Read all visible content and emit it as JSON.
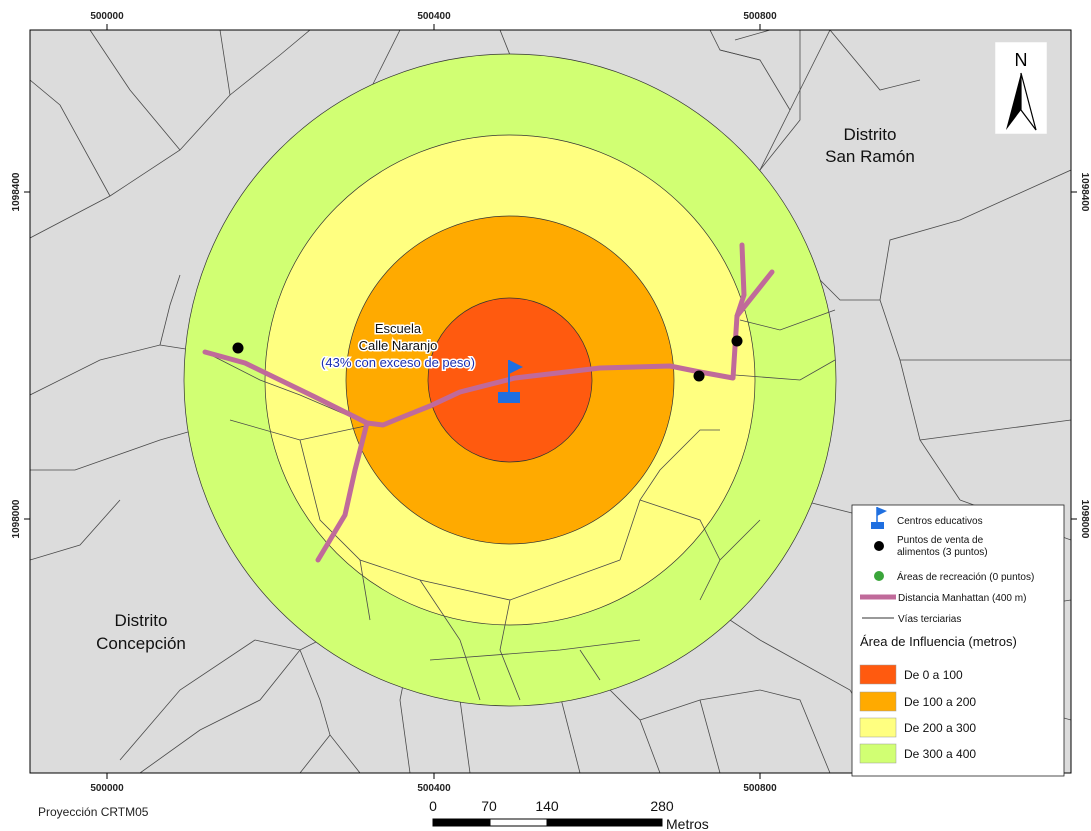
{
  "map": {
    "colors": {
      "background": "#dcdcdc",
      "road": "#4a4a4a",
      "ring_0_100": "#ff5a0f",
      "ring_100_200": "#ffaa00",
      "ring_200_300": "#ffff80",
      "ring_300_400": "#d1ff73",
      "manhattan": "#c06a9a",
      "school": "#1f6fe0",
      "food_point": "#000000",
      "recreation": "#3aa53a"
    },
    "top_ticks": [
      "500000",
      "500400",
      "500800"
    ],
    "bottom_ticks": [
      "500000",
      "500400",
      "500800"
    ],
    "left_ticks": [
      "1098400",
      "1098000"
    ],
    "right_ticks": [
      "1098400",
      "1098000"
    ],
    "labels": {
      "distrito_san_ramon": [
        "Distrito",
        "San Ramón"
      ],
      "distrito_concepcion": [
        "Distrito",
        "Concepción"
      ],
      "school": [
        "Escuela",
        "Calle Naranjo",
        "(43% con exceso de peso)"
      ]
    },
    "projection": "Proyección CRTM05",
    "north_arrow": "N",
    "scale": {
      "ticks": [
        "0",
        "70",
        "140",
        "280"
      ],
      "unit": "Metros"
    },
    "legend": {
      "items": [
        {
          "icon": "school-flag-icon",
          "label": "Centros educativos"
        },
        {
          "icon": "black-dot-icon",
          "label_lines": [
            "Puntos de venta de",
            "alimentos (3 puntos)"
          ]
        },
        {
          "icon": "green-dot-icon",
          "label": "Áreas de recreación (0 puntos)"
        },
        {
          "icon": "pink-line-icon",
          "label": "Distancia Manhattan (400 m)"
        },
        {
          "icon": "thin-line-icon",
          "label": "Vías terciarias"
        }
      ],
      "influence_title": "Área de Influencia (metros)",
      "classes": [
        {
          "label": "De 0 a 100",
          "color": "#ff5a0f"
        },
        {
          "label": "De 100 a 200",
          "color": "#ffaa00"
        },
        {
          "label": "De 200 a 300",
          "color": "#ffff80"
        },
        {
          "label": "De 300 a 400",
          "color": "#d1ff73"
        }
      ]
    }
  }
}
